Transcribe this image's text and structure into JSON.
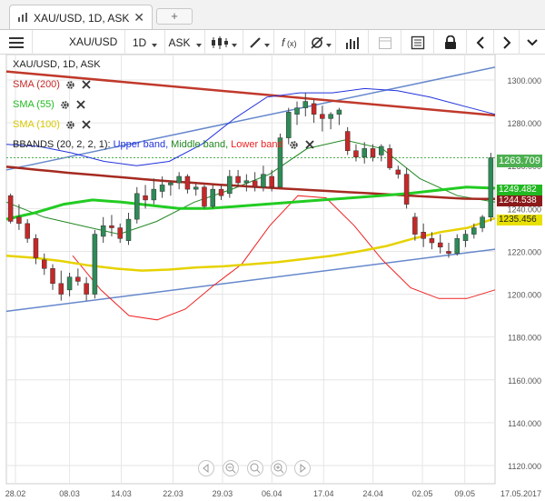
{
  "tab": {
    "title": "XAU/USD, 1D, ASK",
    "close": "✕",
    "add": "+"
  },
  "toolbar": {
    "symbol": "XAU/USD",
    "timeframe": "1D",
    "price_side": "ASK"
  },
  "legend": {
    "main": "XAU/USD, 1D, ASK",
    "sma200": "SMA (200)",
    "sma55": "SMA (55)",
    "sma100": "SMA (100)",
    "bbands_prefix": "BBANDS (20, 2, 2, 1):",
    "bb_upper": "Upper band,",
    "bb_middle": "Middle band,",
    "bb_lower": "Lower band"
  },
  "colors": {
    "bull": "#2e8b57",
    "bear": "#c62828",
    "sma200": "#a52a20",
    "sma55": "#22cc22",
    "sma100": "#e6d200",
    "bb_upper": "#2233dd",
    "bb_middle": "#228822",
    "bb_lower": "#ee2222",
    "trendline": "#6688cc",
    "trend_red": "#c0392b"
  },
  "price_tags": [
    {
      "value": "1263.709",
      "bg": "#4caf50"
    },
    {
      "value": "1249.482",
      "bg": "#22b822"
    },
    {
      "value": "1244.538",
      "bg": "#8b1a1a"
    },
    {
      "value": "1235.456",
      "bg": "#e8e000",
      "fg": "#222"
    }
  ],
  "y_ticks": [
    "1300.000",
    "1280.000",
    "1260.000",
    "1240.000",
    "1220.000",
    "1200.000",
    "1180.000",
    "1160.000",
    "1140.000",
    "1120.000"
  ],
  "x_ticks": [
    "28.02",
    "08.03",
    "14.03",
    "22.03",
    "29.03",
    "06.04",
    "17.04",
    "24.04",
    "02.05",
    "09.05",
    "17.05.2017"
  ],
  "chart_data": {
    "type": "candlestick",
    "title": "XAU/USD, 1D, ASK",
    "ylim": [
      1110,
      1310
    ],
    "candles": [
      {
        "o": 1246,
        "h": 1247,
        "l": 1233,
        "c": 1234
      },
      {
        "o": 1236,
        "h": 1242,
        "l": 1230,
        "c": 1233
      },
      {
        "o": 1233,
        "h": 1235,
        "l": 1224,
        "c": 1226
      },
      {
        "o": 1226,
        "h": 1228,
        "l": 1214,
        "c": 1217
      },
      {
        "o": 1216,
        "h": 1219,
        "l": 1209,
        "c": 1212
      },
      {
        "o": 1212,
        "h": 1214,
        "l": 1202,
        "c": 1205
      },
      {
        "o": 1205,
        "h": 1211,
        "l": 1197,
        "c": 1200
      },
      {
        "o": 1202,
        "h": 1210,
        "l": 1199,
        "c": 1208
      },
      {
        "o": 1208,
        "h": 1212,
        "l": 1204,
        "c": 1206
      },
      {
        "o": 1205,
        "h": 1208,
        "l": 1197,
        "c": 1200
      },
      {
        "o": 1200,
        "h": 1230,
        "l": 1198,
        "c": 1228
      },
      {
        "o": 1227,
        "h": 1236,
        "l": 1224,
        "c": 1232
      },
      {
        "o": 1232,
        "h": 1237,
        "l": 1227,
        "c": 1231
      },
      {
        "o": 1231,
        "h": 1233,
        "l": 1224,
        "c": 1226
      },
      {
        "o": 1225,
        "h": 1238,
        "l": 1223,
        "c": 1235
      },
      {
        "o": 1235,
        "h": 1250,
        "l": 1233,
        "c": 1247
      },
      {
        "o": 1246,
        "h": 1251,
        "l": 1240,
        "c": 1244
      },
      {
        "o": 1244,
        "h": 1254,
        "l": 1242,
        "c": 1249
      },
      {
        "o": 1248,
        "h": 1255,
        "l": 1245,
        "c": 1251
      },
      {
        "o": 1251,
        "h": 1253,
        "l": 1246,
        "c": 1252
      },
      {
        "o": 1252,
        "h": 1257,
        "l": 1249,
        "c": 1255
      },
      {
        "o": 1255,
        "h": 1256,
        "l": 1247,
        "c": 1249
      },
      {
        "o": 1249,
        "h": 1252,
        "l": 1246,
        "c": 1250
      },
      {
        "o": 1250,
        "h": 1251,
        "l": 1240,
        "c": 1241
      },
      {
        "o": 1241,
        "h": 1251,
        "l": 1240,
        "c": 1249
      },
      {
        "o": 1249,
        "h": 1251,
        "l": 1244,
        "c": 1246
      },
      {
        "o": 1247,
        "h": 1258,
        "l": 1245,
        "c": 1255
      },
      {
        "o": 1255,
        "h": 1258,
        "l": 1250,
        "c": 1252
      },
      {
        "o": 1252,
        "h": 1256,
        "l": 1248,
        "c": 1253
      },
      {
        "o": 1253,
        "h": 1257,
        "l": 1248,
        "c": 1250
      },
      {
        "o": 1250,
        "h": 1260,
        "l": 1248,
        "c": 1256
      },
      {
        "o": 1255,
        "h": 1258,
        "l": 1248,
        "c": 1250
      },
      {
        "o": 1250,
        "h": 1275,
        "l": 1250,
        "c": 1273
      },
      {
        "o": 1273,
        "h": 1287,
        "l": 1270,
        "c": 1285
      },
      {
        "o": 1284,
        "h": 1290,
        "l": 1279,
        "c": 1287
      },
      {
        "o": 1287,
        "h": 1294,
        "l": 1283,
        "c": 1290
      },
      {
        "o": 1289,
        "h": 1291,
        "l": 1280,
        "c": 1284
      },
      {
        "o": 1284,
        "h": 1288,
        "l": 1276,
        "c": 1282
      },
      {
        "o": 1282,
        "h": 1285,
        "l": 1277,
        "c": 1284
      },
      {
        "o": 1284,
        "h": 1287,
        "l": 1279,
        "c": 1286
      },
      {
        "o": 1276,
        "h": 1278,
        "l": 1265,
        "c": 1267
      },
      {
        "o": 1267,
        "h": 1270,
        "l": 1262,
        "c": 1264
      },
      {
        "o": 1264,
        "h": 1271,
        "l": 1261,
        "c": 1268
      },
      {
        "o": 1268,
        "h": 1270,
        "l": 1262,
        "c": 1264
      },
      {
        "o": 1265,
        "h": 1270,
        "l": 1262,
        "c": 1269
      },
      {
        "o": 1268,
        "h": 1270,
        "l": 1258,
        "c": 1259
      },
      {
        "o": 1258,
        "h": 1260,
        "l": 1254,
        "c": 1256
      },
      {
        "o": 1256,
        "h": 1259,
        "l": 1240,
        "c": 1242
      },
      {
        "o": 1236,
        "h": 1238,
        "l": 1225,
        "c": 1228
      },
      {
        "o": 1229,
        "h": 1233,
        "l": 1222,
        "c": 1226
      },
      {
        "o": 1226,
        "h": 1229,
        "l": 1221,
        "c": 1224
      },
      {
        "o": 1224,
        "h": 1228,
        "l": 1219,
        "c": 1222
      },
      {
        "o": 1220,
        "h": 1224,
        "l": 1217,
        "c": 1219
      },
      {
        "o": 1219,
        "h": 1228,
        "l": 1218,
        "c": 1226
      },
      {
        "o": 1225,
        "h": 1230,
        "l": 1222,
        "c": 1228
      },
      {
        "o": 1228,
        "h": 1233,
        "l": 1226,
        "c": 1231
      },
      {
        "o": 1231,
        "h": 1237,
        "l": 1229,
        "c": 1236
      },
      {
        "o": 1236,
        "h": 1266,
        "l": 1234,
        "c": 1263.7
      }
    ],
    "sma200": [
      1259.5,
      1258.8,
      1258.1,
      1257.4,
      1256.7,
      1256.1,
      1255.5,
      1254.9,
      1254.3,
      1253.7,
      1253.1,
      1252.6,
      1252.1,
      1251.6,
      1251.1,
      1250.7,
      1250.2,
      1249.8,
      1249.4,
      1249.0,
      1248.6,
      1248.2,
      1247.8,
      1247.4,
      1247.0,
      1246.6,
      1246.2,
      1245.8,
      1245.4,
      1245.0,
      1244.6,
      1244.5,
      1244.5
    ],
    "sma55": [
      1235,
      1238,
      1242,
      1244,
      1243,
      1241.5,
      1240,
      1240,
      1241,
      1242,
      1243,
      1244,
      1245,
      1246,
      1247,
      1248.5,
      1250,
      1249.5
    ],
    "sma100": [
      1218,
      1217,
      1215.5,
      1213.5,
      1212,
      1211,
      1211.5,
      1212.5,
      1213,
      1214,
      1215,
      1216.5,
      1218,
      1220,
      1222.5,
      1226,
      1229,
      1231,
      1235.5
    ],
    "bb_upper": [
      1270,
      1269,
      1266,
      1262,
      1260,
      1262,
      1270,
      1282,
      1292,
      1294,
      1294,
      1296,
      1295,
      1292,
      1288,
      1284
    ],
    "bb_middle": [
      1243,
      1236,
      1232,
      1228,
      1234,
      1243,
      1249,
      1256,
      1268,
      1272,
      1268,
      1254,
      1246,
      1243
    ],
    "bb_lower": [
      1218,
      1202,
      1190,
      1188,
      1193,
      1204,
      1214,
      1232,
      1246,
      1245,
      1232,
      1216,
      1203,
      1198,
      1198,
      1202
    ]
  }
}
